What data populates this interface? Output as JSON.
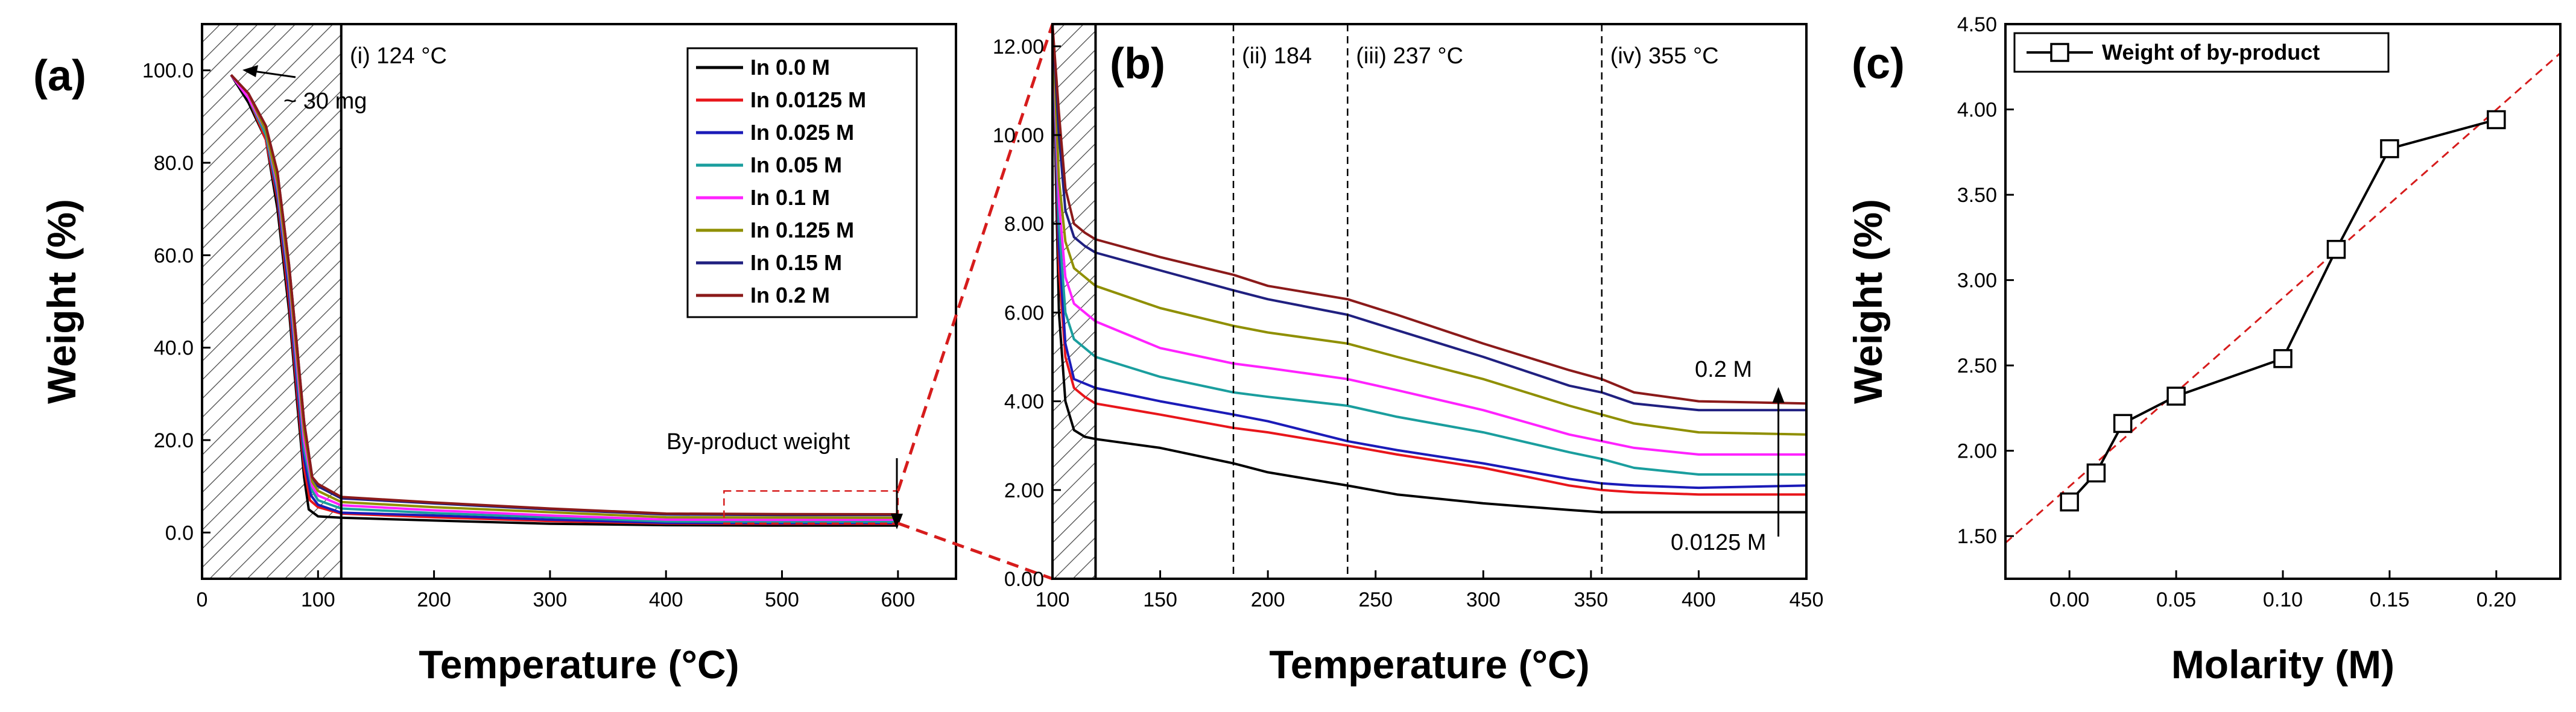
{
  "figure": {
    "panel_labels": [
      "(a)",
      "(b)",
      "(c)"
    ]
  },
  "colors": {
    "In 0.0 M": "#000000",
    "In 0.0125 M": "#e8161b",
    "In 0.025 M": "#1b1bb8",
    "In 0.05 M": "#1a9e9e",
    "In 0.1 M": "#ff22ff",
    "In 0.125 M": "#8f8f00",
    "In 0.15 M": "#202080",
    "In 0.2 M": "#8b1a1a",
    "highlight_red": "#d61c1c"
  },
  "chart_data": [
    {
      "id": "a",
      "type": "line",
      "title": "",
      "xlabel": "Temperature (°C)",
      "ylabel": "Weight (%)",
      "xlim": [
        0,
        650
      ],
      "ylim": [
        -10,
        110
      ],
      "xticks": [
        0,
        100,
        200,
        300,
        400,
        500,
        600
      ],
      "xtick_labels": [
        "0",
        "100",
        "200",
        "300",
        "400",
        "500",
        "600"
      ],
      "yticks": [
        0,
        20,
        40,
        60,
        80,
        100
      ],
      "ytick_labels": [
        "0.0",
        "20.0",
        "40.0",
        "60.0",
        "80.0",
        "100.0"
      ],
      "hatched_region": [
        0,
        120
      ],
      "annotations": {
        "region_i": "(i) 124 °C",
        "mass": "~ 30 mg",
        "byproduct": "By-product weight"
      },
      "zoom_box": {
        "x": [
          450,
          600
        ],
        "y": [
          2,
          9
        ]
      },
      "legend": [
        "In 0.0 M",
        "In 0.0125 M",
        "In 0.025 M",
        "In 0.05 M",
        "In 0.1 M",
        "In 0.125 M",
        "In 0.15 M",
        "In 0.2 M"
      ],
      "series": [
        {
          "name": "In 0.0 M",
          "x": [
            25,
            40,
            55,
            65,
            75,
            82,
            88,
            92,
            100,
            120,
            200,
            300,
            400,
            500,
            600
          ],
          "y": [
            99,
            93,
            85,
            70,
            48,
            28,
            12,
            5,
            3.5,
            3.2,
            2.6,
            1.9,
            1.6,
            1.5,
            1.5
          ]
        },
        {
          "name": "In 0.0125 M",
          "x": [
            25,
            40,
            55,
            65,
            75,
            82,
            88,
            93,
            100,
            120,
            200,
            300,
            400,
            500,
            600
          ],
          "y": [
            99,
            94,
            85,
            72,
            50,
            30,
            14,
            7,
            5.5,
            4.1,
            3.3,
            2.5,
            1.95,
            1.9,
            1.9
          ]
        },
        {
          "name": "In 0.025 M",
          "x": [
            25,
            40,
            55,
            65,
            75,
            82,
            88,
            94,
            100,
            120,
            200,
            300,
            400,
            500,
            600
          ],
          "y": [
            99,
            94,
            86,
            73,
            52,
            32,
            16,
            8,
            6.0,
            4.3,
            3.7,
            2.8,
            2.1,
            2.05,
            2.1
          ]
        },
        {
          "name": "In 0.05 M",
          "x": [
            25,
            40,
            55,
            65,
            75,
            82,
            88,
            95,
            100,
            120,
            200,
            300,
            400,
            500,
            600
          ],
          "y": [
            99,
            94,
            86,
            74,
            54,
            34,
            18,
            9,
            7.0,
            5.2,
            4.2,
            3.3,
            2.4,
            2.3,
            2.3
          ]
        },
        {
          "name": "In 0.1 M",
          "x": [
            25,
            40,
            55,
            65,
            75,
            82,
            88,
            95,
            100,
            120,
            200,
            300,
            400,
            500,
            600
          ],
          "y": [
            99,
            94,
            87,
            75,
            55,
            36,
            20,
            10,
            8.0,
            5.9,
            4.8,
            3.7,
            2.8,
            2.75,
            2.8
          ]
        },
        {
          "name": "In 0.125 M",
          "x": [
            25,
            40,
            55,
            65,
            75,
            82,
            88,
            95,
            100,
            120,
            200,
            300,
            400,
            500,
            600
          ],
          "y": [
            99,
            95,
            87,
            76,
            56,
            38,
            22,
            11,
            9.0,
            6.6,
            5.5,
            4.4,
            3.3,
            3.25,
            3.2
          ]
        },
        {
          "name": "In 0.15 M",
          "x": [
            25,
            40,
            55,
            65,
            75,
            82,
            88,
            95,
            100,
            120,
            200,
            300,
            400,
            500,
            600
          ],
          "y": [
            99,
            95,
            88,
            78,
            58,
            40,
            24,
            12,
            10.0,
            7.4,
            6.3,
            5.0,
            3.9,
            3.8,
            3.8
          ]
        },
        {
          "name": "In 0.2 M",
          "x": [
            25,
            40,
            55,
            65,
            75,
            82,
            88,
            95,
            100,
            120,
            200,
            300,
            400,
            500,
            600
          ],
          "y": [
            99,
            95,
            88,
            78,
            58,
            40,
            24,
            12,
            10.5,
            7.7,
            6.5,
            5.2,
            4.1,
            4.0,
            3.95
          ]
        }
      ]
    },
    {
      "id": "b",
      "type": "line",
      "title": "",
      "xlabel": "Temperature (°C)",
      "ylabel": "",
      "xlim": [
        100,
        450
      ],
      "ylim": [
        0,
        12.5
      ],
      "xticks": [
        100,
        150,
        200,
        250,
        300,
        350,
        400,
        450
      ],
      "xtick_labels": [
        "100",
        "150",
        "200",
        "250",
        "300",
        "350",
        "400",
        "450"
      ],
      "yticks": [
        0,
        2,
        4,
        6,
        8,
        10,
        12
      ],
      "ytick_labels": [
        "0.00",
        "2.00",
        "4.00",
        "6.00",
        "8.00",
        "10.00",
        "12.00"
      ],
      "hatched_region": [
        100,
        120
      ],
      "vlines": [
        {
          "x": 184,
          "label": "(ii) 184"
        },
        {
          "x": 237,
          "label": "(iii) 237 °C"
        },
        {
          "x": 355,
          "label": "(iv) 355 °C"
        }
      ],
      "annotations": {
        "top": "0.2 M",
        "bottom": "0.0125 M"
      },
      "arrow_x": 437,
      "series": [
        {
          "name": "In 0.0 M",
          "x": [
            100,
            103,
            106,
            110,
            115,
            120,
            150,
            184,
            200,
            237,
            260,
            300,
            340,
            355,
            370,
            400,
            450
          ],
          "y": [
            12.5,
            6,
            4,
            3.35,
            3.2,
            3.15,
            2.95,
            2.6,
            2.4,
            2.1,
            1.9,
            1.7,
            1.55,
            1.5,
            1.5,
            1.5,
            1.5
          ]
        },
        {
          "name": "In 0.0125 M",
          "x": [
            100,
            103,
            106,
            110,
            115,
            120,
            150,
            184,
            200,
            237,
            260,
            300,
            340,
            355,
            370,
            400,
            450
          ],
          "y": [
            12.5,
            7,
            5,
            4.3,
            4.1,
            3.95,
            3.7,
            3.4,
            3.3,
            3.0,
            2.8,
            2.5,
            2.1,
            2.0,
            1.95,
            1.9,
            1.9
          ]
        },
        {
          "name": "In 0.025 M",
          "x": [
            100,
            103,
            106,
            110,
            115,
            120,
            150,
            184,
            200,
            237,
            260,
            300,
            340,
            355,
            370,
            400,
            450
          ],
          "y": [
            12.5,
            7.5,
            5.3,
            4.5,
            4.4,
            4.3,
            4.0,
            3.7,
            3.55,
            3.1,
            2.9,
            2.6,
            2.25,
            2.15,
            2.1,
            2.05,
            2.1
          ]
        },
        {
          "name": "In 0.05 M",
          "x": [
            100,
            103,
            106,
            110,
            115,
            120,
            150,
            184,
            200,
            237,
            260,
            300,
            340,
            355,
            370,
            400,
            450
          ],
          "y": [
            12.5,
            8,
            6,
            5.4,
            5.2,
            5.0,
            4.55,
            4.2,
            4.1,
            3.9,
            3.65,
            3.3,
            2.85,
            2.7,
            2.5,
            2.35,
            2.35
          ]
        },
        {
          "name": "In 0.1 M",
          "x": [
            100,
            103,
            106,
            110,
            115,
            120,
            150,
            184,
            200,
            237,
            260,
            300,
            340,
            355,
            370,
            400,
            450
          ],
          "y": [
            12.5,
            8.5,
            6.8,
            6.2,
            6.0,
            5.8,
            5.2,
            4.85,
            4.75,
            4.5,
            4.25,
            3.8,
            3.25,
            3.1,
            2.95,
            2.8,
            2.8
          ]
        },
        {
          "name": "In 0.125 M",
          "x": [
            100,
            103,
            106,
            110,
            115,
            120,
            150,
            184,
            200,
            237,
            260,
            300,
            340,
            355,
            370,
            400,
            450
          ],
          "y": [
            12.5,
            9,
            7.6,
            7.0,
            6.8,
            6.6,
            6.1,
            5.7,
            5.55,
            5.3,
            5.0,
            4.5,
            3.9,
            3.7,
            3.5,
            3.3,
            3.25
          ]
        },
        {
          "name": "In 0.15 M",
          "x": [
            100,
            103,
            106,
            110,
            115,
            120,
            150,
            184,
            200,
            237,
            260,
            300,
            340,
            355,
            370,
            400,
            450
          ],
          "y": [
            12.5,
            10,
            8.3,
            7.7,
            7.5,
            7.35,
            6.95,
            6.5,
            6.3,
            5.95,
            5.6,
            5.0,
            4.35,
            4.2,
            3.95,
            3.8,
            3.8
          ]
        },
        {
          "name": "In 0.2 M",
          "x": [
            100,
            103,
            106,
            110,
            115,
            120,
            150,
            184,
            200,
            237,
            260,
            300,
            340,
            355,
            370,
            400,
            450
          ],
          "y": [
            12.5,
            10.5,
            8.8,
            8.0,
            7.8,
            7.65,
            7.25,
            6.85,
            6.6,
            6.3,
            5.95,
            5.3,
            4.7,
            4.5,
            4.2,
            4.0,
            3.95
          ]
        }
      ]
    },
    {
      "id": "c",
      "type": "line",
      "title": "",
      "xlabel": "Molarity (M)",
      "ylabel": "Weight (%)",
      "xlim": [
        -0.03,
        0.23
      ],
      "ylim": [
        1.25,
        4.5
      ],
      "xticks": [
        0,
        0.05,
        0.1,
        0.15,
        0.2
      ],
      "xtick_labels": [
        "0.00",
        "0.05",
        "0.10",
        "0.15",
        "0.20"
      ],
      "yticks": [
        1.5,
        2.0,
        2.5,
        3.0,
        3.5,
        4.0,
        4.5
      ],
      "ytick_labels": [
        "1.50",
        "2.00",
        "2.50",
        "3.00",
        "3.50",
        "4.00",
        "4.50"
      ],
      "legend": [
        "Weight of by-product"
      ],
      "series": [
        {
          "name": "Weight of by-product",
          "x": [
            0,
            0.0125,
            0.025,
            0.05,
            0.1,
            0.125,
            0.15,
            0.2
          ],
          "y": [
            1.7,
            1.87,
            2.16,
            2.32,
            2.54,
            3.18,
            3.77,
            3.94
          ]
        }
      ],
      "fit_line": {
        "x": [
          -0.03,
          0.23
        ],
        "y": [
          1.46,
          4.33
        ]
      }
    }
  ]
}
